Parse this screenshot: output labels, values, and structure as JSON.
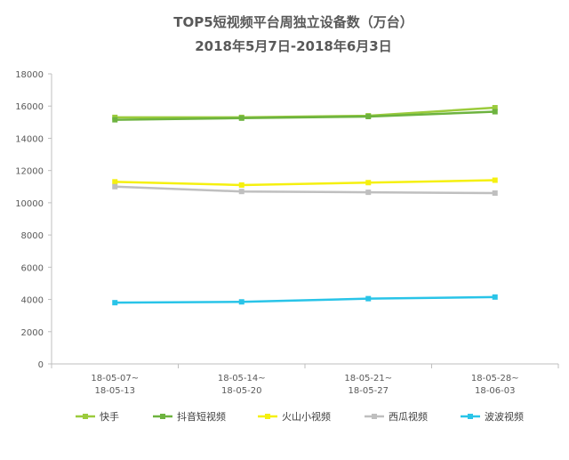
{
  "chart_data": {
    "type": "line",
    "title": "TOP5短视频平台周独立设备数（万台）",
    "subtitle": "2018年5月7日-2018年6月3日",
    "categories": [
      [
        "18-05-07~",
        "18-05-13"
      ],
      [
        "18-05-14~",
        "18-05-20"
      ],
      [
        "18-05-21~",
        "18-05-27"
      ],
      [
        "18-05-28~",
        "18-06-03"
      ]
    ],
    "y_ticks": [
      "0",
      "2000",
      "4000",
      "6000",
      "8000",
      "10000",
      "12000",
      "14000",
      "16000",
      "18000"
    ],
    "ylim": [
      0,
      18000
    ],
    "grid": false,
    "legend_position": "bottom",
    "series": [
      {
        "name": "快手",
        "color": "#9BCB3C",
        "values": [
          15300,
          15300,
          15400,
          15900
        ]
      },
      {
        "name": "抖音短视频",
        "color": "#6DB33F",
        "values": [
          15150,
          15250,
          15350,
          15650
        ]
      },
      {
        "name": "火山小视频",
        "color": "#F5F00F",
        "values": [
          11300,
          11100,
          11250,
          11400
        ]
      },
      {
        "name": "西瓜视频",
        "color": "#BFBFBF",
        "values": [
          11000,
          10700,
          10650,
          10600
        ]
      },
      {
        "name": "波波视频",
        "color": "#29C4E8",
        "values": [
          3800,
          3850,
          4050,
          4150
        ]
      }
    ]
  }
}
